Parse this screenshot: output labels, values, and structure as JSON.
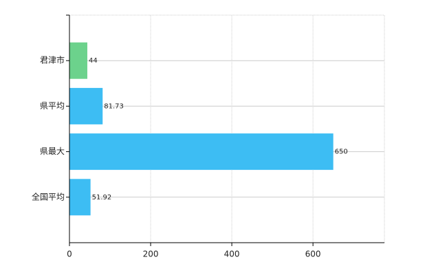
{
  "chart_data": {
    "type": "barh",
    "categories": [
      "君津市",
      "県平均",
      "県最大",
      "全国平均"
    ],
    "values": [
      44,
      81.73,
      650,
      51.92
    ],
    "colors": [
      "#6cd28c",
      "#3dbdf3",
      "#3dbdf3",
      "#3dbdf3"
    ],
    "xlim": [
      0,
      776
    ],
    "xticks": [
      0,
      200,
      400,
      600
    ],
    "grid": true
  }
}
